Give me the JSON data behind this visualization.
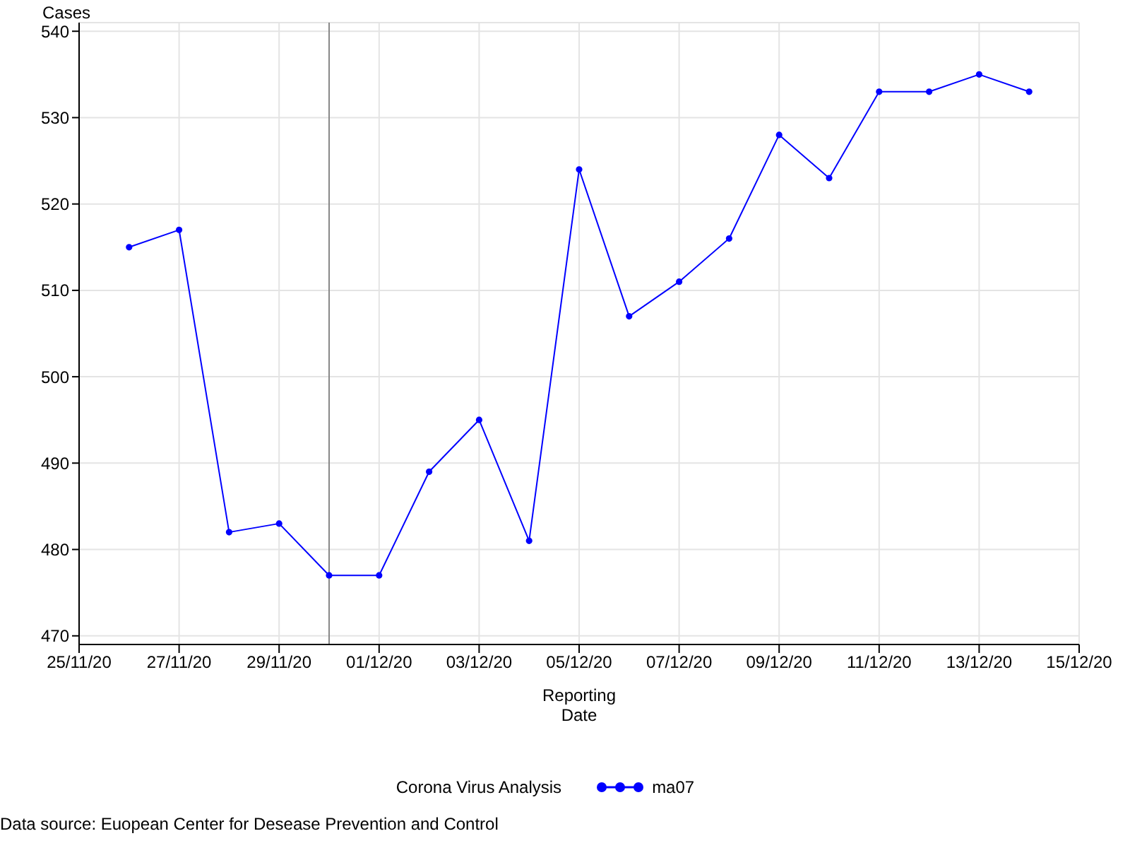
{
  "chart_data": {
    "type": "line",
    "ylabel": "Cases",
    "xlabel": "Reporting Date",
    "legend_title": "Corona Virus Analysis",
    "x": [
      "--11-26",
      "--11-27",
      "--11-28",
      "--11-29",
      "--11-30",
      "--12-01",
      "--12-02",
      "--12-03",
      "--12-04",
      "--12-05",
      "--12-06",
      "--12-07",
      "--12-08",
      "--12-09",
      "--12-10",
      "--12-11",
      "--12-12",
      "--12-13",
      "--12-14"
    ],
    "series": [
      {
        "name": "ma07",
        "color": "#0000ff",
        "values": [
          515,
          517,
          482,
          483,
          477,
          477,
          489,
          495,
          481,
          524,
          507,
          511,
          516,
          528,
          523,
          533,
          533,
          535,
          533
        ]
      }
    ],
    "xlim": [
      "--11-25",
      "--12-15"
    ],
    "xticks": [
      {
        "value": "--11-25",
        "label": "25/11/20"
      },
      {
        "value": "--11-27",
        "label": "27/11/20"
      },
      {
        "value": "--11-29",
        "label": "29/11/20"
      },
      {
        "value": "--12-01",
        "label": "01/12/20"
      },
      {
        "value": "--12-03",
        "label": "03/12/20"
      },
      {
        "value": "--12-05",
        "label": "05/12/20"
      },
      {
        "value": "--12-07",
        "label": "07/12/20"
      },
      {
        "value": "--12-09",
        "label": "09/12/20"
      },
      {
        "value": "--12-11",
        "label": "11/12/20"
      },
      {
        "value": "--12-13",
        "label": "13/12/20"
      },
      {
        "value": "--12-15",
        "label": "15/12/20"
      }
    ],
    "ylim": [
      469,
      541
    ],
    "yticks": [
      470,
      480,
      490,
      500,
      510,
      520,
      530,
      540
    ],
    "ref_lines": [
      {
        "axis": "x",
        "value": "--11-30",
        "color": "#888888"
      }
    ],
    "grid": true,
    "legend": "bottom",
    "marker": "circle",
    "line_style": "solid",
    "annotations": [
      "Data source: Euopean Center for Desease Prevention and Control"
    ]
  }
}
